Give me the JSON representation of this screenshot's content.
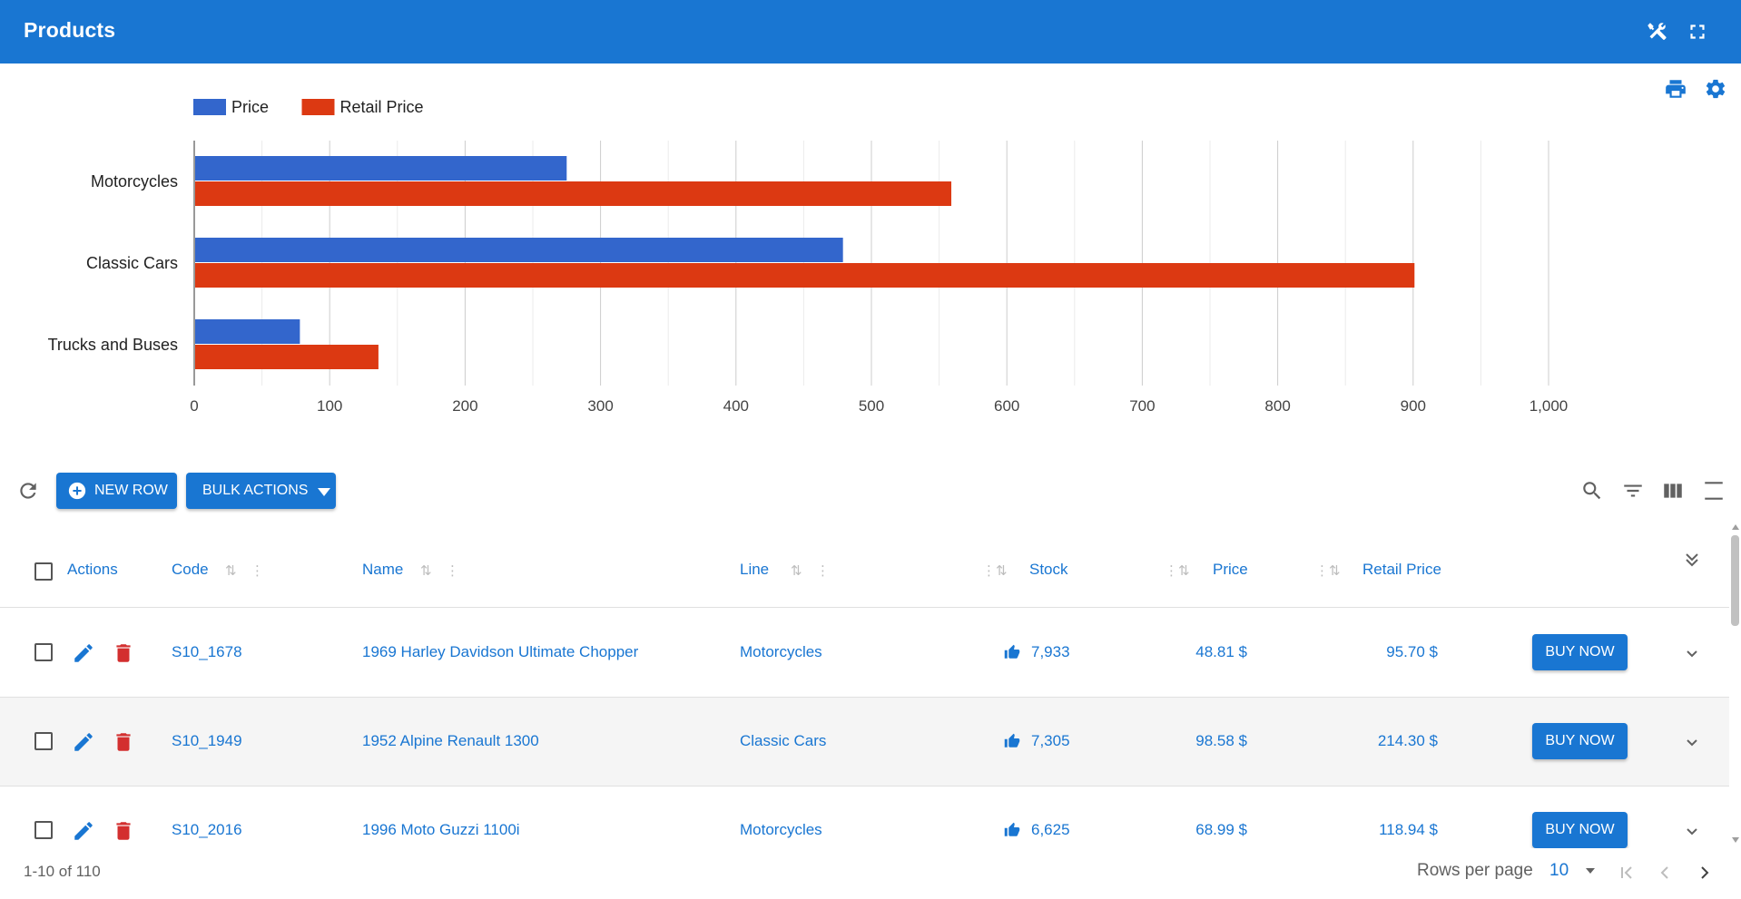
{
  "app": {
    "title": "Products"
  },
  "colors": {
    "primary": "#1976d2",
    "price": "#3366cc",
    "retail": "#dc3912",
    "danger": "#d32f2f"
  },
  "header_icons": [
    "tools-icon",
    "fullscreen-icon"
  ],
  "chart_icons": [
    "print-icon",
    "settings-gear-icon"
  ],
  "chart_data": {
    "type": "bar",
    "orientation": "horizontal",
    "categories": [
      "Motorcycles",
      "Classic Cars",
      "Trucks and Buses"
    ],
    "series": [
      {
        "name": "Price",
        "values": [
          275,
          479,
          78
        ]
      },
      {
        "name": "Retail Price",
        "values": [
          559,
          901,
          136
        ]
      }
    ],
    "xlim": [
      0,
      1000
    ],
    "xticks": [
      "0",
      "100",
      "200",
      "300",
      "400",
      "500",
      "600",
      "700",
      "800",
      "900",
      "1,000"
    ],
    "grid": true,
    "legend": "top-left"
  },
  "toolbar": {
    "new_row": "NEW ROW",
    "bulk_actions": "BULK ACTIONS",
    "icons": [
      "refresh-icon",
      "search-icon",
      "filter-icon",
      "columns-icon",
      "density-icon"
    ]
  },
  "table": {
    "headers": {
      "actions": "Actions",
      "code": "Code",
      "name": "Name",
      "line": "Line",
      "stock": "Stock",
      "price": "Price",
      "retail": "Retail Price"
    },
    "rows": [
      {
        "code": "S10_1678",
        "name": "1969 Harley Davidson Ultimate Chopper",
        "line": "Motorcycles",
        "stock": "7,933",
        "price": "48.81 $",
        "retail": "95.70 $",
        "buy": "BUY NOW"
      },
      {
        "code": "S10_1949",
        "name": "1952 Alpine Renault 1300",
        "line": "Classic Cars",
        "stock": "7,305",
        "price": "98.58 $",
        "retail": "214.30 $",
        "buy": "BUY NOW"
      },
      {
        "code": "S10_2016",
        "name": "1996 Moto Guzzi 1100i",
        "line": "Motorcycles",
        "stock": "6,625",
        "price": "68.99 $",
        "retail": "118.94 $",
        "buy": "BUY NOW"
      }
    ]
  },
  "footer": {
    "range": "1-10 of 110",
    "rows_per_page_label": "Rows per page",
    "rows_per_page_value": "10"
  }
}
